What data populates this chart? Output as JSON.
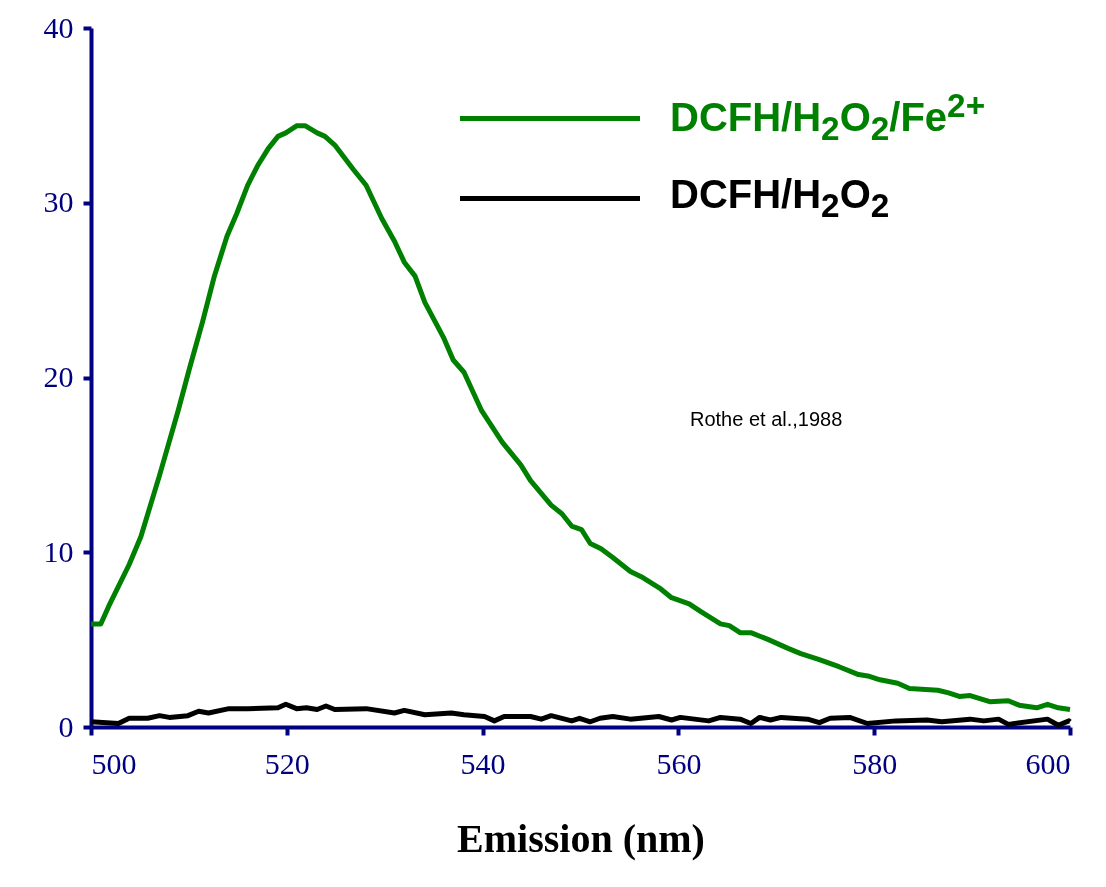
{
  "chart_data": {
    "type": "line",
    "xlabel": "Emission (nm)",
    "xlim": [
      500,
      600
    ],
    "xticks": [
      500,
      520,
      540,
      560,
      580,
      600
    ],
    "ylim": [
      0,
      40
    ],
    "yticks": [
      0,
      10,
      20,
      30,
      40
    ],
    "grid": false,
    "legend": "top right",
    "marker": "none",
    "line_style": "solid",
    "annotations": [
      "Rothe et al.,1988"
    ],
    "series": [
      {
        "name": "DCFH/H$_{2}$O$_{2}$/Fe$^{2+}$",
        "color": "#008000",
        "x": [
          500,
          501,
          501.8,
          503.9,
          505.1,
          507,
          508.9,
          510.1,
          511.4,
          512.6,
          513.9,
          514.9,
          516,
          517,
          518.1,
          519.1,
          519.9,
          521,
          521.9,
          523.1,
          523.9,
          524.9,
          526.8,
          528.1,
          529.7,
          531,
          532,
          533.1,
          534.1,
          536,
          537,
          538.1,
          539.9,
          542,
          543.9,
          544.9,
          547,
          548.1,
          549.1,
          550.1,
          551,
          552.1,
          553.3,
          555.1,
          556.2,
          558.2,
          559.3,
          561.1,
          562.3,
          564.3,
          565.2,
          566.3,
          567.4,
          569.2,
          571.2,
          572.5,
          574.4,
          576.4,
          578.4,
          579.5,
          580.6,
          582.4,
          583.6,
          586.5,
          587.6,
          588.7,
          589.8,
          591.8,
          593.7,
          594.8,
          596.6,
          597.7,
          598.8,
          600
        ],
        "values": [
          5.9,
          5.9,
          6.9,
          9.3,
          10.9,
          14.4,
          18.1,
          20.6,
          23.2,
          25.8,
          28.1,
          29.4,
          31,
          32.1,
          33.1,
          33.8,
          34,
          34.4,
          34.4,
          34,
          33.8,
          33.3,
          31.9,
          31,
          29.1,
          27.8,
          26.6,
          25.8,
          24.3,
          22.3,
          21,
          20.3,
          18.1,
          16.3,
          15,
          14.1,
          12.7,
          12.2,
          11.5,
          11.3,
          10.5,
          10.2,
          9.7,
          8.9,
          8.6,
          7.9,
          7.4,
          7.05,
          6.6,
          5.9,
          5.8,
          5.4,
          5.4,
          5,
          4.5,
          4.2,
          3.85,
          3.45,
          3,
          2.9,
          2.7,
          2.5,
          2.2,
          2.1,
          1.95,
          1.75,
          1.8,
          1.45,
          1.5,
          1.25,
          1.1,
          1.3,
          1.1,
          1
        ]
      },
      {
        "name": "DCFH/H$_{2}$O$_{2}$",
        "color": "#000000",
        "x": [
          500,
          502.8,
          503.9,
          505.8,
          507,
          508,
          509.9,
          511,
          512,
          514.1,
          516,
          519.1,
          519.9,
          521,
          522,
          523.1,
          524,
          524.9,
          528.1,
          531,
          532,
          534.1,
          536.8,
          538.1,
          540.2,
          541.2,
          542.2,
          544.9,
          546,
          547,
          549.1,
          549.9,
          551,
          552,
          553.3,
          555.1,
          558,
          559.3,
          560.2,
          563.1,
          564.3,
          566.3,
          567.4,
          568.3,
          569.4,
          570.5,
          573.2,
          574.4,
          575.5,
          577.5,
          579.3,
          582.2,
          585.4,
          586.9,
          589.8,
          591.2,
          592.7,
          593.7,
          597.7,
          598.8,
          599.9,
          600
        ],
        "values": [
          0.3,
          0.2,
          0.5,
          0.5,
          0.65,
          0.55,
          0.65,
          0.9,
          0.8,
          1.05,
          1.05,
          1.1,
          1.3,
          1.05,
          1.1,
          1,
          1.2,
          1,
          1.05,
          0.8,
          0.95,
          0.7,
          0.8,
          0.7,
          0.6,
          0.35,
          0.6,
          0.6,
          0.45,
          0.65,
          0.35,
          0.5,
          0.3,
          0.5,
          0.6,
          0.45,
          0.6,
          0.4,
          0.55,
          0.35,
          0.55,
          0.45,
          0.2,
          0.55,
          0.4,
          0.55,
          0.45,
          0.25,
          0.5,
          0.55,
          0.2,
          0.35,
          0.4,
          0.3,
          0.45,
          0.35,
          0.45,
          0.15,
          0.45,
          0.1,
          0.35,
          0.3
        ]
      }
    ]
  }
}
